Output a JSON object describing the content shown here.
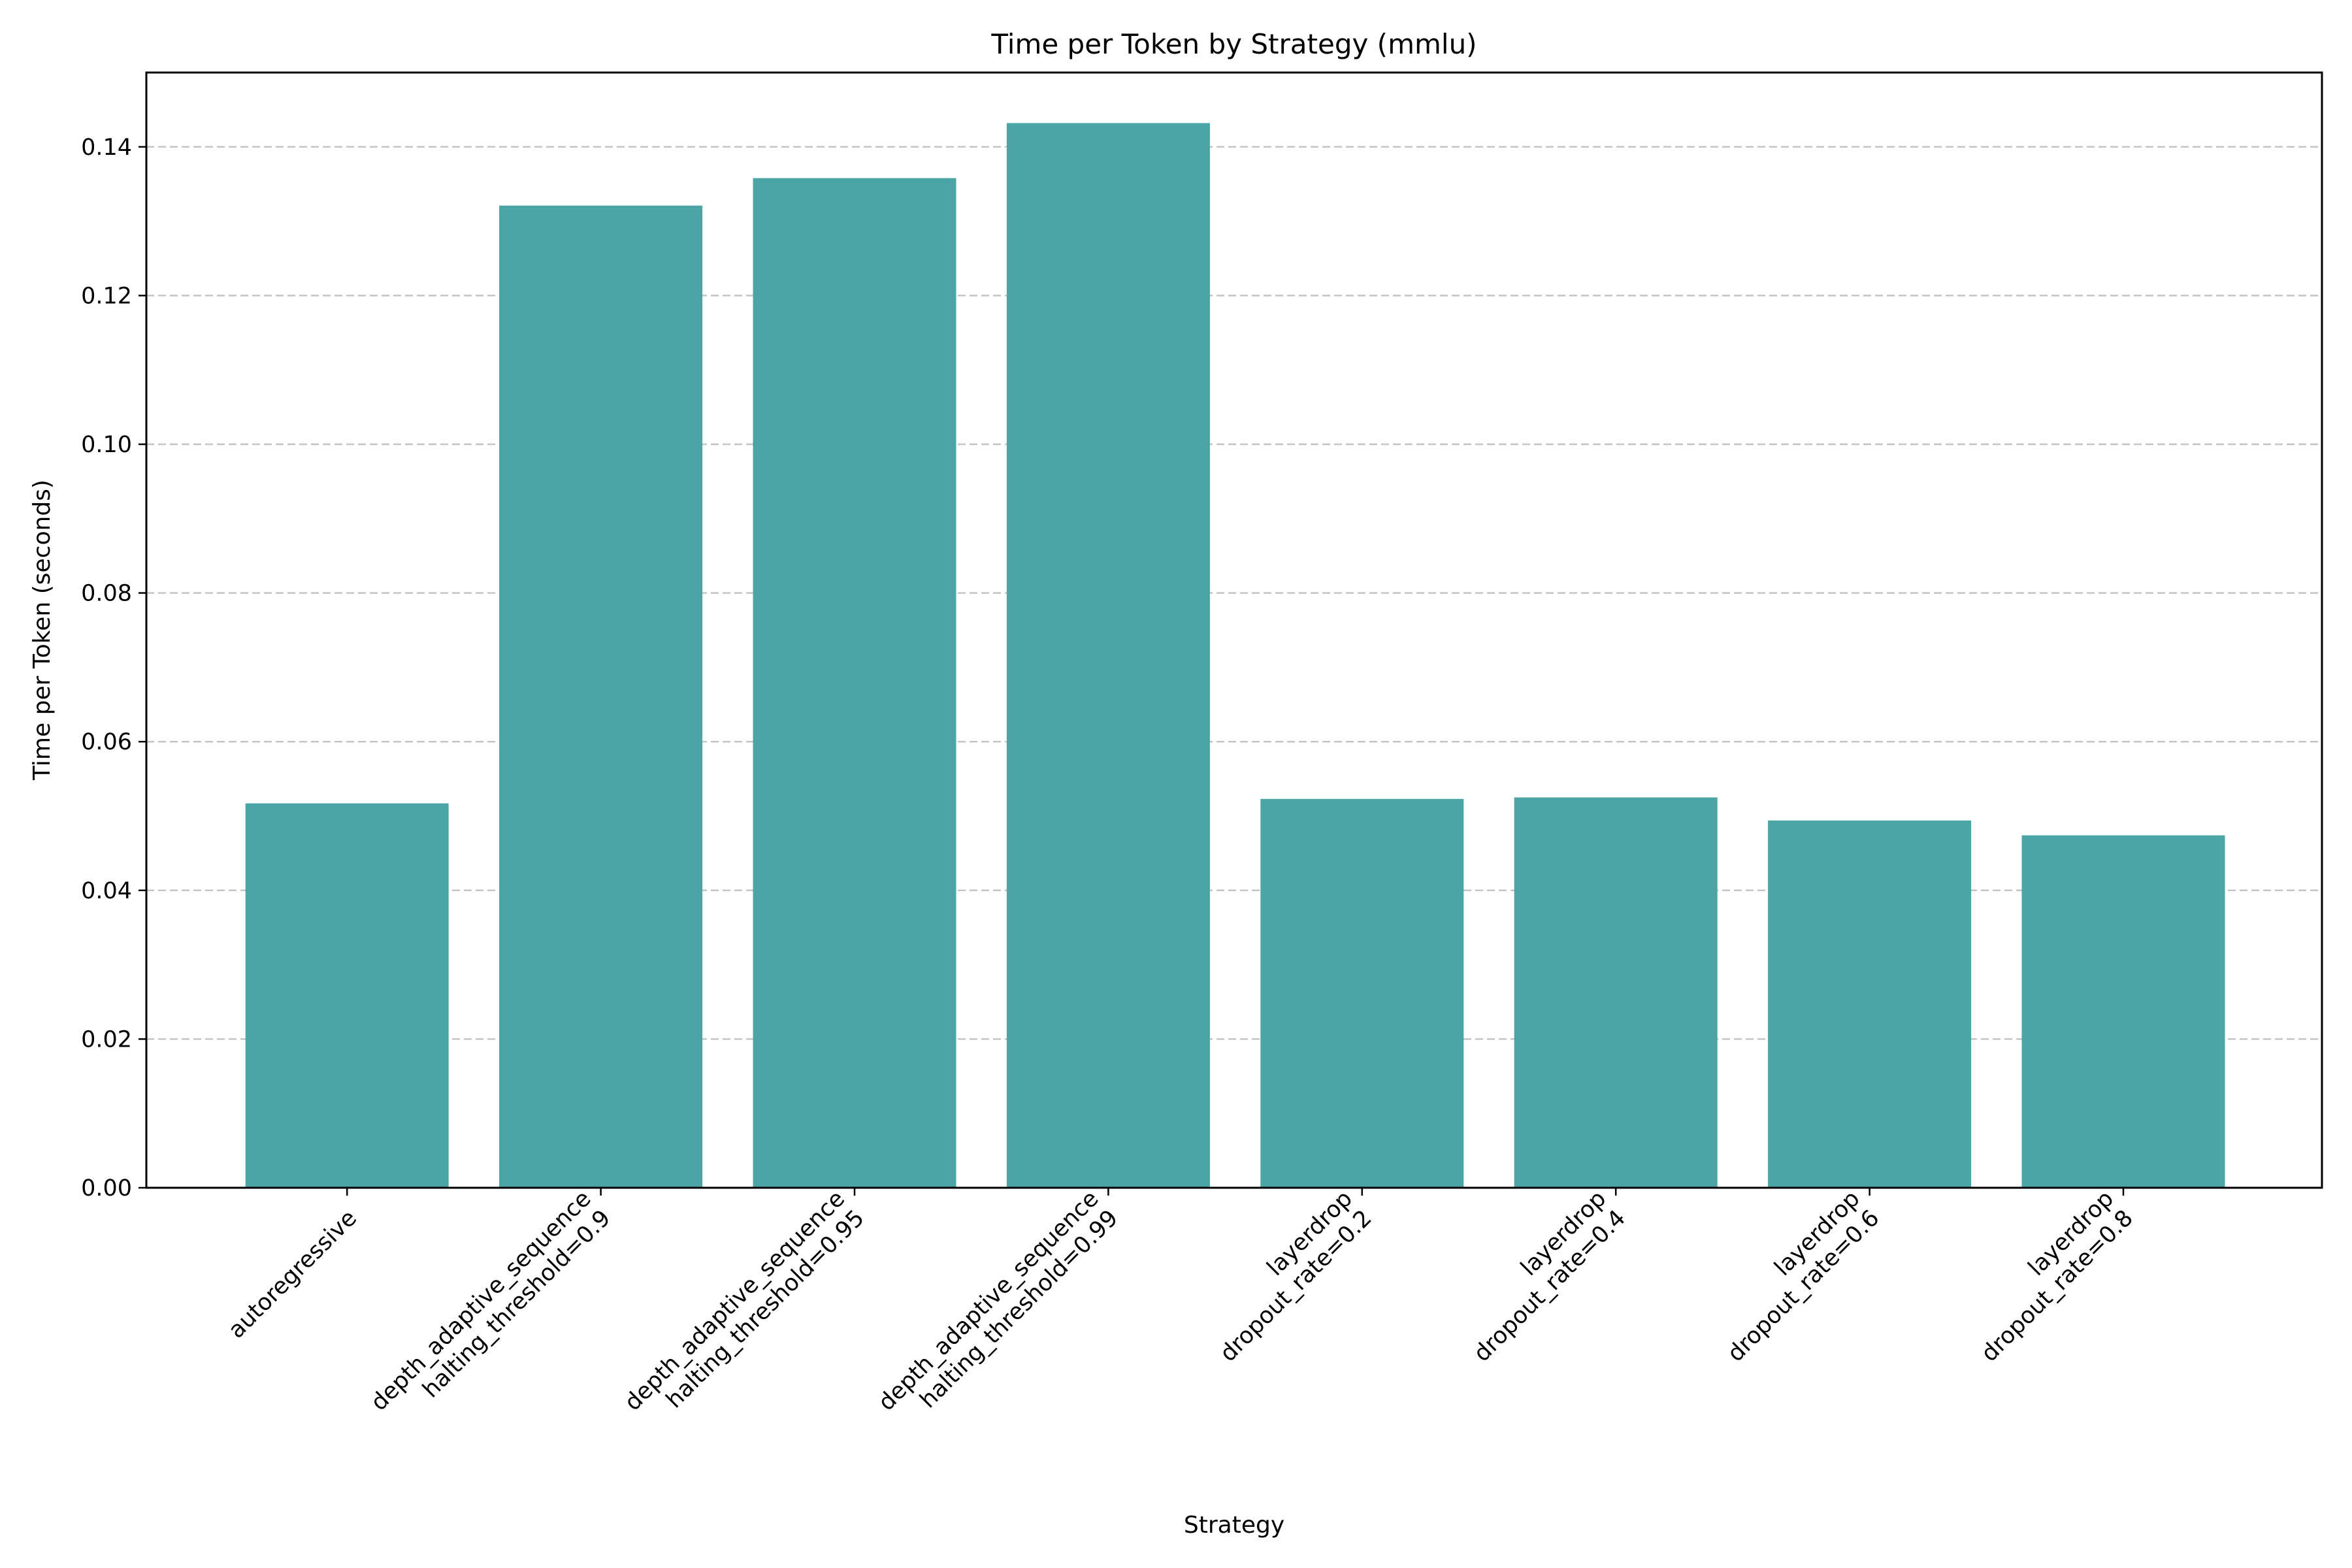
{
  "chart_data": {
    "type": "bar",
    "title": "Time per Token by Strategy (mmlu)",
    "xlabel": "Strategy",
    "ylabel": "Time per Token (seconds)",
    "categories": [
      [
        "autoregressive"
      ],
      [
        "depth_adaptive_sequence",
        "halting_threshold=0.9"
      ],
      [
        "depth_adaptive_sequence",
        "halting_threshold=0.95"
      ],
      [
        "depth_adaptive_sequence",
        "halting_threshold=0.99"
      ],
      [
        "layerdrop",
        "dropout_rate=0.2"
      ],
      [
        "layerdrop",
        "dropout_rate=0.4"
      ],
      [
        "layerdrop",
        "dropout_rate=0.6"
      ],
      [
        "layerdrop",
        "dropout_rate=0.8"
      ]
    ],
    "values": [
      0.0517,
      0.1321,
      0.1358,
      0.1432,
      0.0523,
      0.0525,
      0.0494,
      0.0474
    ],
    "ylim": [
      0,
      0.15
    ],
    "yticks": [
      "0.00",
      "0.02",
      "0.04",
      "0.06",
      "0.08",
      "0.10",
      "0.12",
      "0.14"
    ],
    "grid": true,
    "bar_color": "#4ca5a5",
    "grid_color": "#c4c4c4"
  }
}
